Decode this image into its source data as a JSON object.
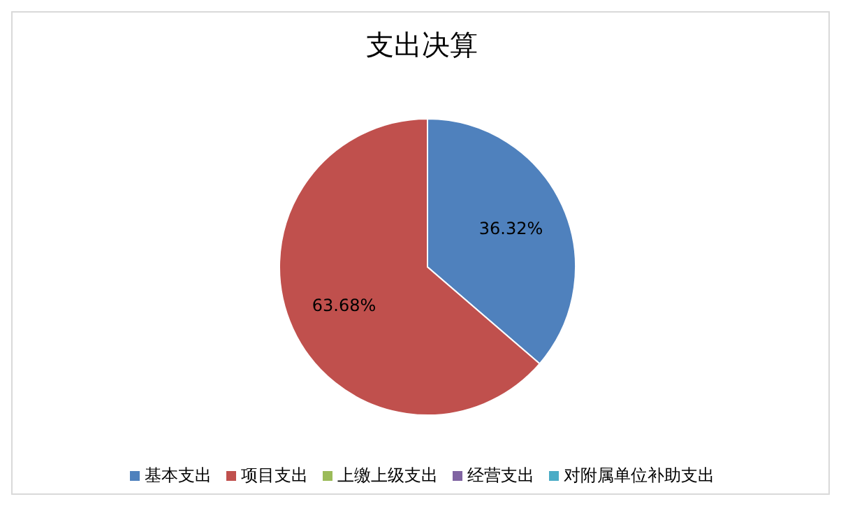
{
  "chart_data": {
    "type": "pie",
    "title": "支出决算",
    "categories": [
      "基本支出",
      "项目支出",
      "上缴上级支出",
      "经营支出",
      "对附属单位补助支出"
    ],
    "values": [
      36.32,
      63.68,
      0,
      0,
      0
    ],
    "colors": [
      "#4f81bd",
      "#c0504d",
      "#9bbb59",
      "#8064a2",
      "#4bacc6"
    ],
    "value_labels": [
      "36.32%",
      "63.68%",
      null,
      null,
      null
    ],
    "legend": "bottom"
  }
}
